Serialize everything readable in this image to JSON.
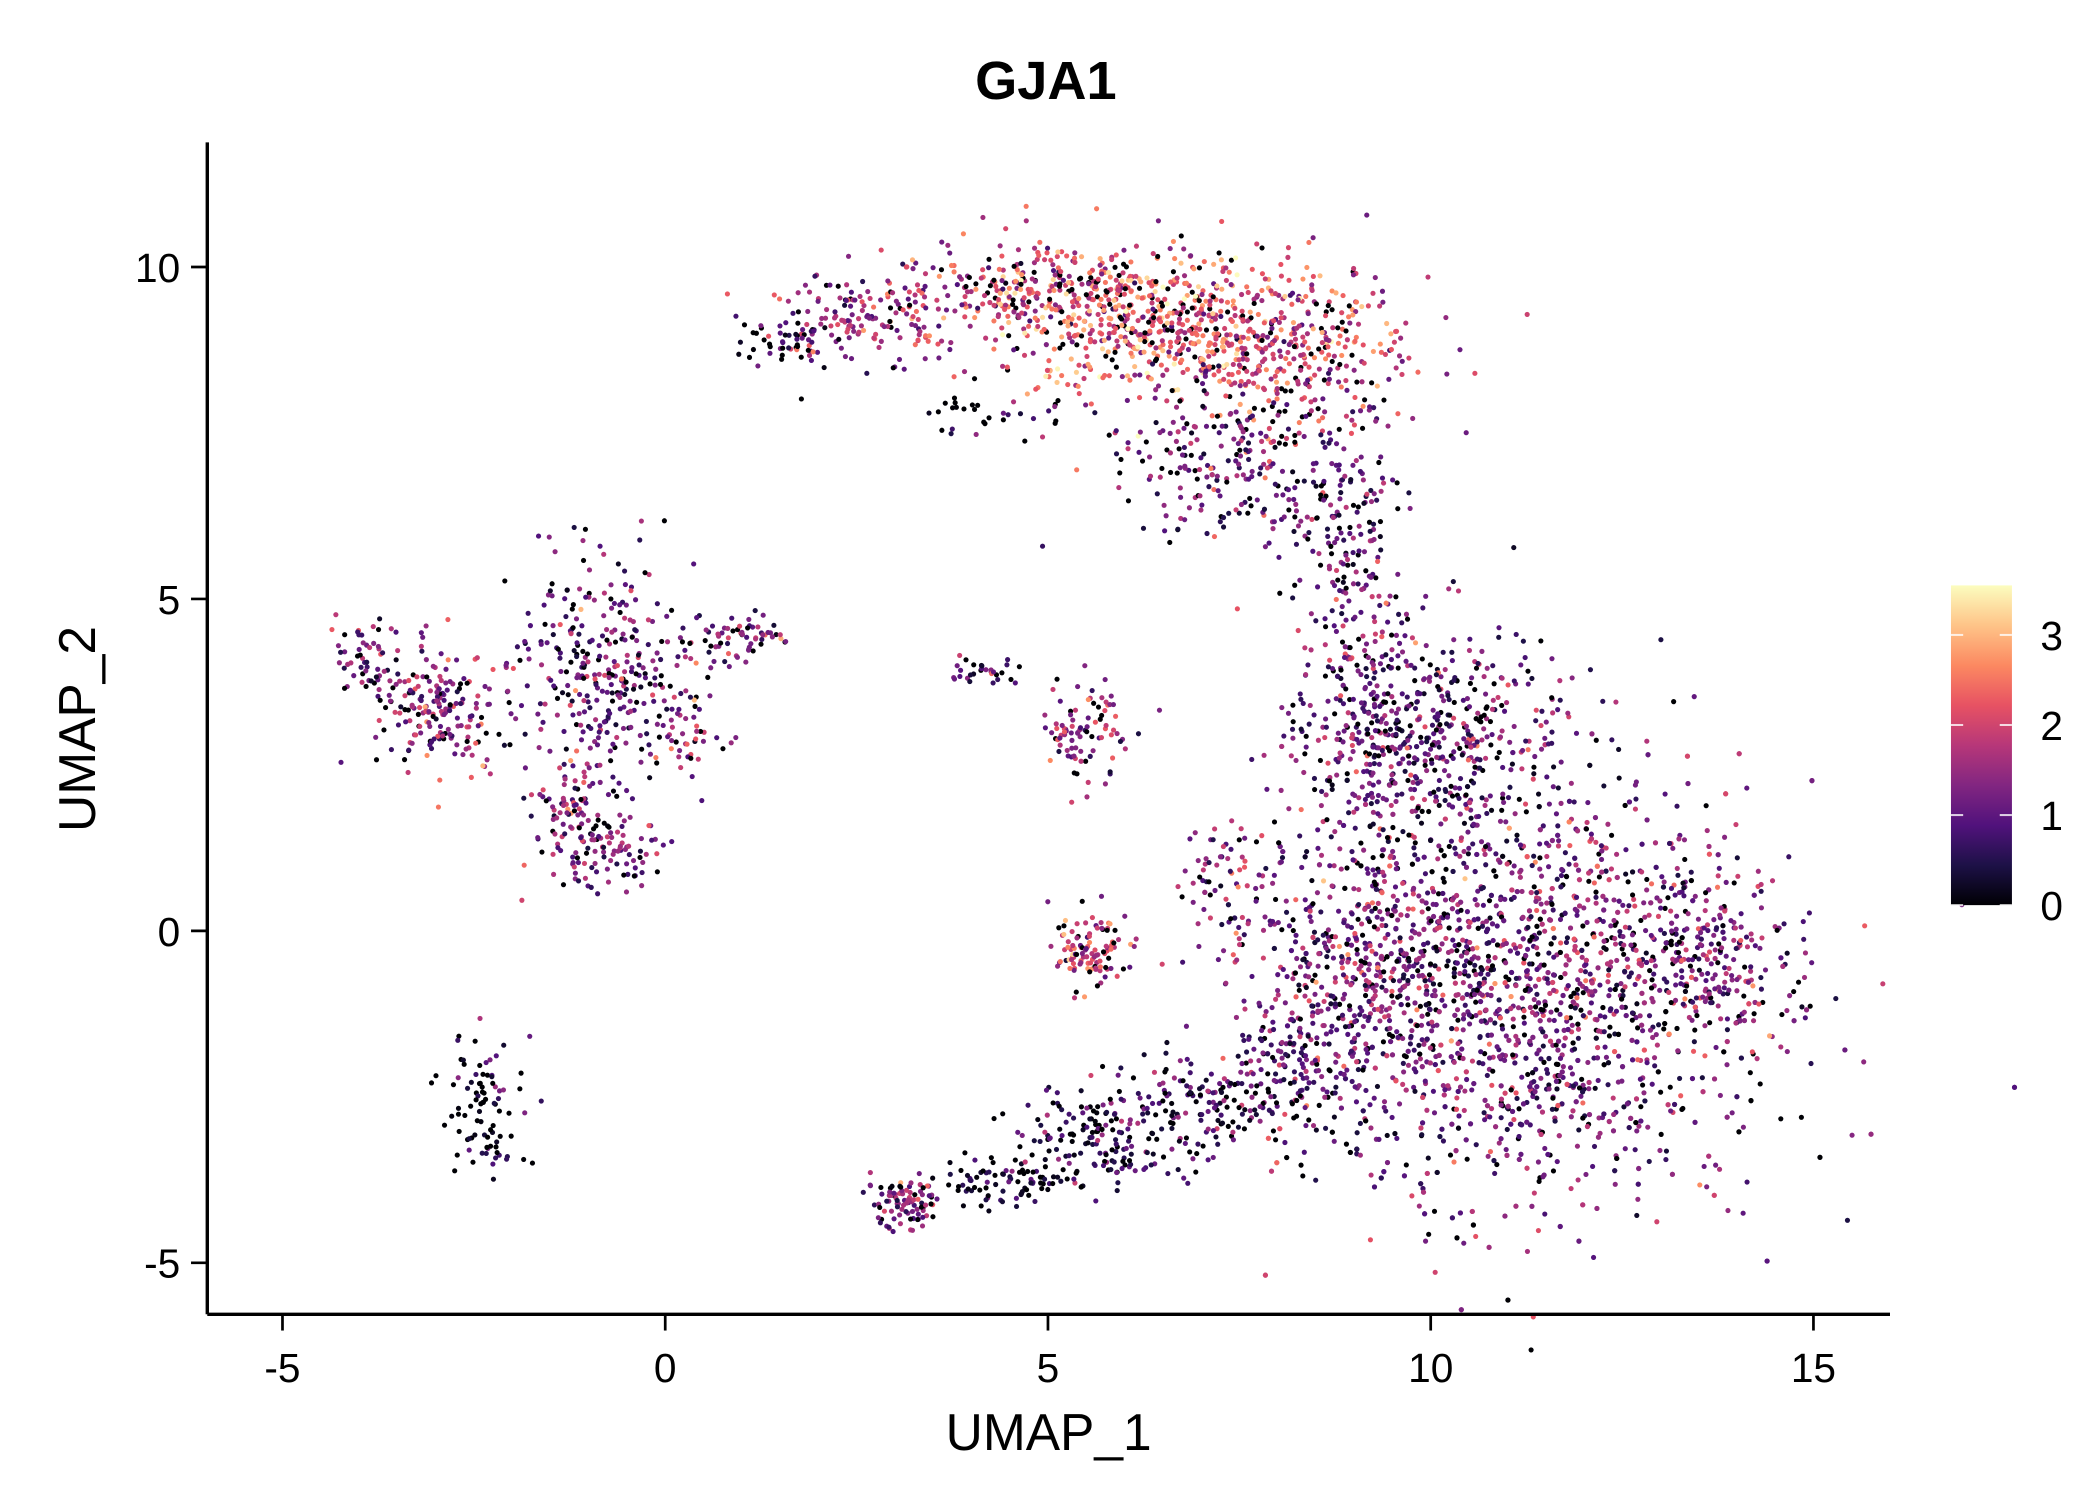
{
  "chart_data": {
    "type": "scatter",
    "title": "GJA1",
    "xlabel": "UMAP_1",
    "ylabel": "UMAP_2",
    "xlim": [
      -6,
      16
    ],
    "ylim": [
      -5.8,
      11.8
    ],
    "xticks": [
      -5,
      0,
      5,
      10,
      15
    ],
    "yticks": [
      -5,
      0,
      5,
      10
    ],
    "grid": false,
    "colorbar": {
      "position": "right",
      "range": [
        0,
        3.55
      ],
      "ticks": [
        0,
        1,
        2,
        3
      ],
      "palette": [
        "#000004",
        "#1d1147",
        "#51127c",
        "#822681",
        "#b73779",
        "#e75263",
        "#fc8961",
        "#fec488",
        "#fcfdbf"
      ]
    },
    "clusters": [
      {
        "cx": 2.5,
        "cy": 9.2,
        "sx": 0.7,
        "sy": 0.35,
        "n": 160,
        "expr": 1.4
      },
      {
        "cx": 4.5,
        "cy": 9.6,
        "sx": 0.8,
        "sy": 0.35,
        "n": 220,
        "expr": 1.8
      },
      {
        "cx": 6.2,
        "cy": 9.2,
        "sx": 1.0,
        "sy": 0.6,
        "n": 550,
        "expr": 2.3
      },
      {
        "cx": 8.2,
        "cy": 8.8,
        "sx": 0.8,
        "sy": 0.6,
        "n": 380,
        "expr": 1.9
      },
      {
        "cx": 7.4,
        "cy": 7.0,
        "sx": 0.8,
        "sy": 0.7,
        "n": 220,
        "expr": 1.2
      },
      {
        "cx": 8.8,
        "cy": 6.4,
        "sx": 0.4,
        "sy": 0.8,
        "n": 130,
        "expr": 1.1
      },
      {
        "cx": 9.1,
        "cy": 4.3,
        "sx": 0.35,
        "sy": 0.9,
        "n": 120,
        "expr": 1.3
      },
      {
        "cx": 4.3,
        "cy": 7.8,
        "sx": 0.4,
        "sy": 0.2,
        "n": 30,
        "expr": 0.1
      },
      {
        "cx": 1.5,
        "cy": 8.8,
        "sx": 0.3,
        "sy": 0.15,
        "n": 30,
        "expr": 0.3
      },
      {
        "cx": 11.2,
        "cy": -0.9,
        "sx": 1.5,
        "sy": 1.6,
        "n": 2200,
        "expr": 1.2
      },
      {
        "cx": 10.0,
        "cy": 2.8,
        "sx": 0.9,
        "sy": 0.9,
        "n": 550,
        "expr": 1.0
      },
      {
        "cx": 13.5,
        "cy": -0.3,
        "sx": 0.6,
        "sy": 0.7,
        "n": 220,
        "expr": 1.4
      },
      {
        "cx": 9.0,
        "cy": -0.3,
        "sx": 0.8,
        "sy": 1.0,
        "n": 320,
        "expr": 1.2
      },
      {
        "cx": 3.1,
        "cy": -4.1,
        "sx": 0.2,
        "sy": 0.2,
        "n": 90,
        "expr": 1.3
      },
      {
        "cx": 4.5,
        "cy": -3.8,
        "sx": 0.5,
        "sy": 0.2,
        "n": 90,
        "expr": 0.4
      },
      {
        "cx": 5.8,
        "cy": -3.1,
        "sx": 0.6,
        "sy": 0.4,
        "n": 160,
        "expr": 0.5
      },
      {
        "cx": 7.2,
        "cy": -2.6,
        "sx": 0.7,
        "sy": 0.4,
        "n": 160,
        "expr": 0.7
      },
      {
        "cx": 8.3,
        "cy": -2.0,
        "sx": 0.4,
        "sy": 0.5,
        "n": 110,
        "expr": 0.9
      },
      {
        "cx": 5.6,
        "cy": -0.3,
        "sx": 0.3,
        "sy": 0.3,
        "n": 110,
        "expr": 1.8
      },
      {
        "cx": 5.5,
        "cy": 3.0,
        "sx": 0.25,
        "sy": 0.4,
        "n": 90,
        "expr": 1.2
      },
      {
        "cx": 7.3,
        "cy": 0.6,
        "sx": 0.3,
        "sy": 0.6,
        "n": 70,
        "expr": 1.5
      },
      {
        "cx": 4.1,
        "cy": 3.9,
        "sx": 0.3,
        "sy": 0.1,
        "n": 30,
        "expr": 1.0
      },
      {
        "cx": -3.0,
        "cy": 3.4,
        "sx": 0.4,
        "sy": 0.5,
        "n": 190,
        "expr": 1.5
      },
      {
        "cx": -3.9,
        "cy": 4.1,
        "sx": 0.2,
        "sy": 0.3,
        "n": 50,
        "expr": 1.3
      },
      {
        "cx": -0.8,
        "cy": 4.0,
        "sx": 0.6,
        "sy": 0.8,
        "n": 320,
        "expr": 1.1
      },
      {
        "cx": -1.2,
        "cy": 1.8,
        "sx": 0.3,
        "sy": 0.5,
        "n": 100,
        "expr": 1.2
      },
      {
        "cx": -0.7,
        "cy": 1.2,
        "sx": 0.3,
        "sy": 0.3,
        "n": 70,
        "expr": 1.2
      },
      {
        "cx": 1.0,
        "cy": 4.4,
        "sx": 0.3,
        "sy": 0.2,
        "n": 60,
        "expr": 1.4
      },
      {
        "cx": 0.3,
        "cy": 3.0,
        "sx": 0.2,
        "sy": 0.3,
        "n": 40,
        "expr": 1.6
      },
      {
        "cx": -2.3,
        "cy": -2.7,
        "sx": 0.3,
        "sy": 0.6,
        "n": 90,
        "expr": 0.2
      }
    ]
  }
}
